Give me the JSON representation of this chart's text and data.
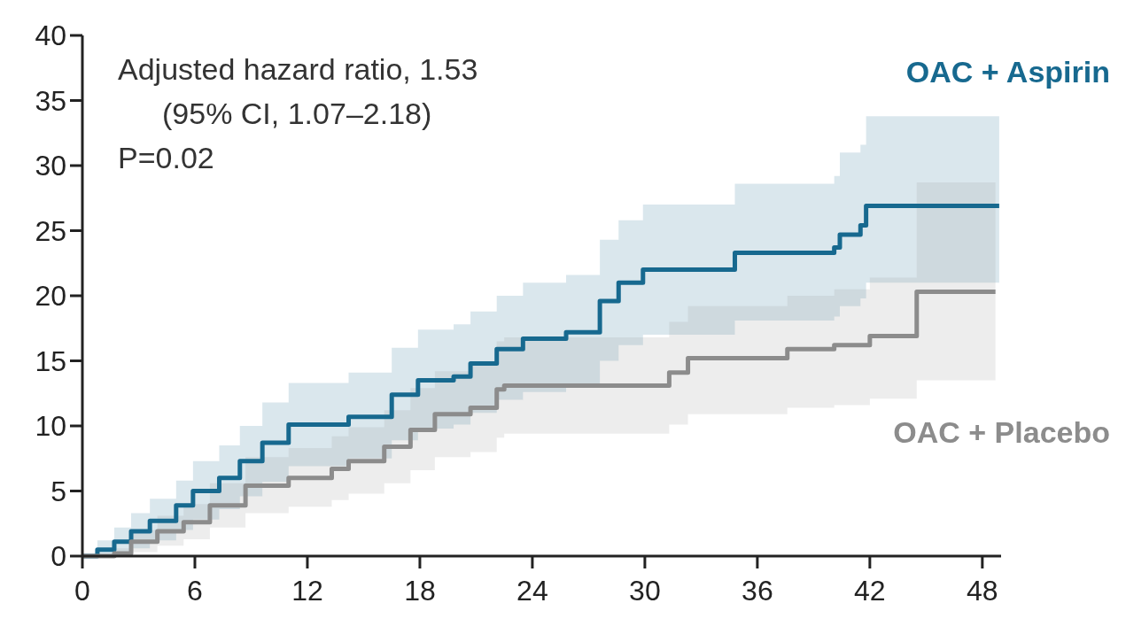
{
  "chart_data": {
    "type": "step",
    "annotations": [
      "Adjusted hazard ratio, 1.53",
      "(95% CI, 1.07–2.18)",
      "P=0.02"
    ],
    "xlim": [
      0,
      49
    ],
    "xticks": [
      0,
      6,
      12,
      18,
      24,
      30,
      36,
      42,
      48
    ],
    "ylim": [
      0,
      40
    ],
    "yticks": [
      0,
      5,
      10,
      15,
      20,
      25,
      30,
      35,
      40
    ],
    "grid": false,
    "series": [
      {
        "name": "OAC + Aspirin",
        "color": "#17698f",
        "x": [
          0,
          0.8,
          1.7,
          2.6,
          3.6,
          5.0,
          5.9,
          7.3,
          8.4,
          9.6,
          11.0,
          14.2,
          16.5,
          17.9,
          19.8,
          20.7,
          22.1,
          23.5,
          25.8,
          27.6,
          28.6,
          29.9,
          34.1,
          34.8,
          40.1,
          40.4,
          41.5,
          41.8,
          48.9
        ],
        "values": [
          0,
          0.5,
          1.1,
          1.9,
          2.7,
          3.9,
          5.0,
          6.0,
          7.3,
          8.7,
          10.1,
          10.7,
          12.4,
          13.5,
          13.8,
          14.8,
          15.9,
          16.7,
          17.2,
          19.6,
          21.0,
          22.0,
          22.0,
          23.3,
          23.7,
          24.7,
          25.4,
          26.9,
          26.9
        ],
        "lower": [
          0,
          0,
          0.2,
          0.6,
          1.2,
          2.0,
          2.8,
          3.6,
          4.6,
          5.7,
          6.9,
          7.5,
          8.9,
          9.8,
          10.1,
          11.0,
          12.0,
          12.6,
          13.1,
          15.0,
          16.2,
          17.0,
          17.0,
          18.1,
          18.4,
          19.2,
          19.8,
          21.0,
          21.0
        ],
        "upper": [
          0,
          1.2,
          2.2,
          3.3,
          4.4,
          5.8,
          7.3,
          8.5,
          10.0,
          11.8,
          13.3,
          14.1,
          16.0,
          17.4,
          17.8,
          18.8,
          20.0,
          21.0,
          21.6,
          24.3,
          25.8,
          27.0,
          27.0,
          28.6,
          29.2,
          31.0,
          31.6,
          33.8,
          33.8
        ]
      },
      {
        "name": "OAC + Placebo",
        "color": "#8c8c8c",
        "x": [
          0,
          1.7,
          2.6,
          4.0,
          5.4,
          6.8,
          8.7,
          11.0,
          13.3,
          14.2,
          16.1,
          17.5,
          18.8,
          20.7,
          22.1,
          22.5,
          30.0,
          31.3,
          32.3,
          37.4,
          37.6,
          40.1,
          42.0,
          44.3,
          44.5,
          48.7
        ],
        "values": [
          0,
          0.2,
          1.1,
          1.9,
          2.6,
          3.9,
          5.4,
          6.0,
          6.7,
          7.3,
          8.4,
          9.7,
          10.9,
          11.4,
          12.8,
          13.1,
          13.1,
          14.1,
          15.2,
          15.2,
          15.9,
          16.2,
          16.9,
          16.9,
          20.3,
          20.3
        ],
        "lower": [
          0,
          0,
          0.3,
          0.8,
          1.3,
          2.2,
          3.3,
          3.8,
          4.3,
          4.8,
          5.6,
          6.6,
          7.6,
          8.0,
          9.1,
          9.4,
          9.4,
          10.1,
          10.9,
          10.9,
          11.4,
          11.6,
          12.1,
          12.1,
          13.5,
          13.5
        ],
        "upper": [
          0,
          0.6,
          2.0,
          3.1,
          4.0,
          5.6,
          7.6,
          8.3,
          9.2,
          9.9,
          11.2,
          12.9,
          14.2,
          14.8,
          16.5,
          16.8,
          16.8,
          18.0,
          19.2,
          19.2,
          20.0,
          20.5,
          21.4,
          21.4,
          28.7,
          28.7
        ]
      }
    ]
  }
}
